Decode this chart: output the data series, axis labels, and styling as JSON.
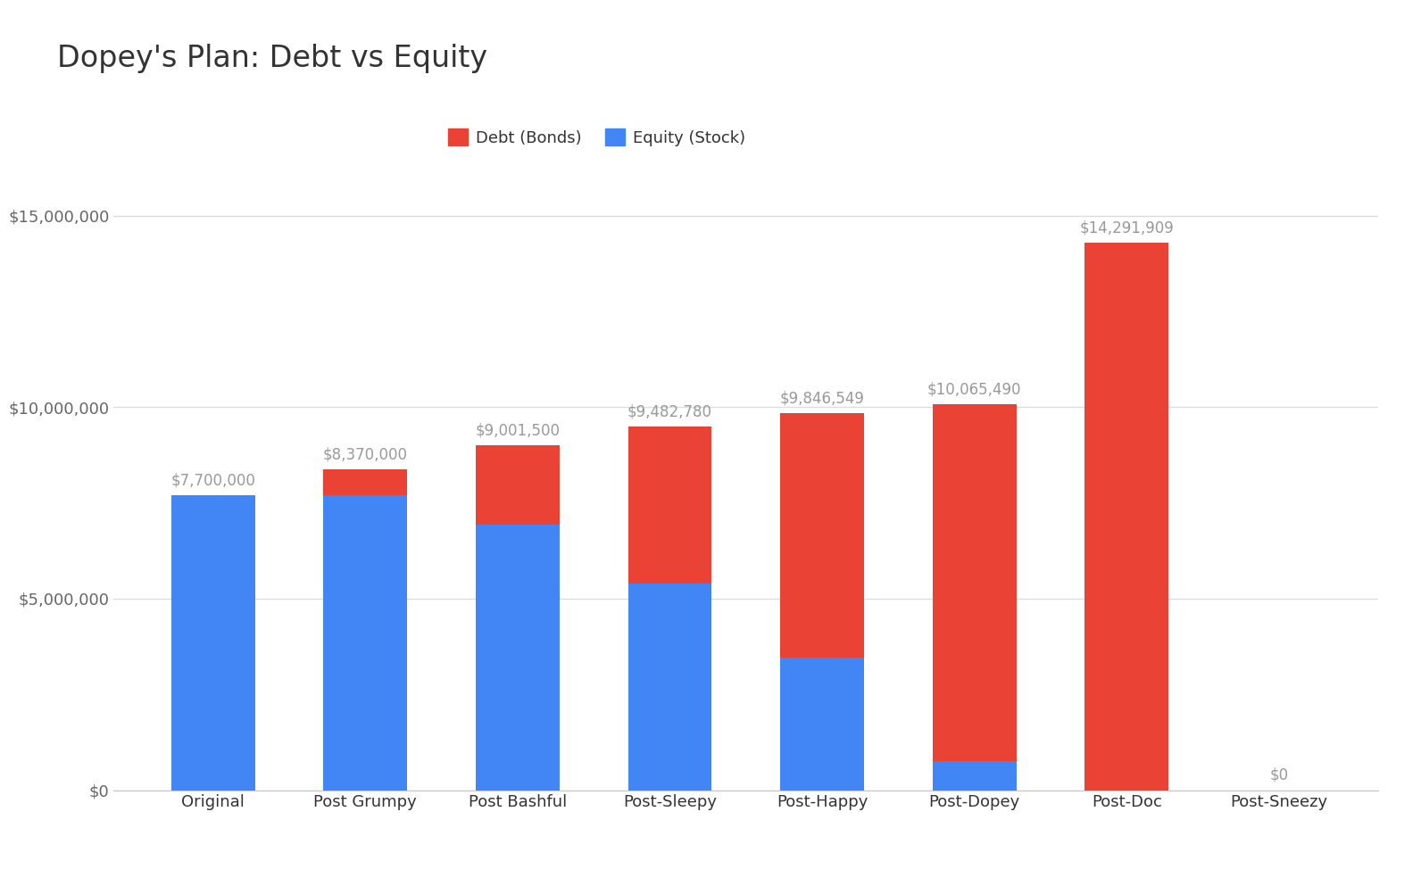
{
  "title": "Dopey's Plan: Debt vs Equity",
  "categories": [
    "Original",
    "Post Grumpy",
    "Post Bashful",
    "Post-Sleepy",
    "Post-Happy",
    "Post-Dopey",
    "Post-Doc",
    "Post-Sneezy"
  ],
  "equity": [
    7700000,
    7700000,
    6930000,
    5390000,
    3465000,
    770000,
    0,
    0
  ],
  "debt": [
    0,
    670000,
    2071500,
    4092780,
    6381549,
    9295490,
    14291909,
    0
  ],
  "totals": [
    7700000,
    8370000,
    9001500,
    9482780,
    9846549,
    10065490,
    14291909,
    0
  ],
  "total_labels": [
    "$7,700,000",
    "$8,370,000",
    "$9,001,500",
    "$9,482,780",
    "$9,846,549",
    "$10,065,490",
    "$14,291,909",
    "$0"
  ],
  "debt_color": "#EA4335",
  "equity_color": "#4285F4",
  "background_color": "#ffffff",
  "title_fontsize": 24,
  "legend_fontsize": 13,
  "tick_fontsize": 13,
  "label_fontsize": 12,
  "ylim": [
    0,
    16500000
  ],
  "yticks": [
    0,
    5000000,
    10000000,
    15000000
  ],
  "annotation_color": "#999999",
  "grid_color": "#dddddd"
}
